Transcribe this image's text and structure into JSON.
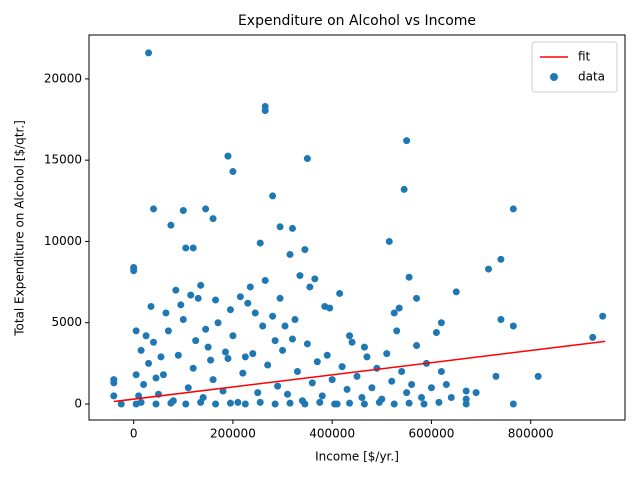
{
  "chart_data": {
    "type": "scatter",
    "title": "Expenditure on Alcohol vs Income",
    "x_label": "Income [$/yr.]",
    "y_label": "Total Expenditure on Alcohol [$/qtr.]",
    "xlim": [
      -90000,
      990000
    ],
    "ylim": [
      -985,
      22700
    ],
    "xticks": [
      0,
      200000,
      400000,
      600000,
      800000
    ],
    "yticks": [
      0,
      5000,
      10000,
      15000,
      20000
    ],
    "legend": "upper right",
    "series": [
      {
        "name": "fit",
        "type": "line",
        "color": "#ff0000",
        "x": [
          -40000,
          950000
        ],
        "values": [
          150,
          3850
        ]
      },
      {
        "name": "data",
        "type": "scatter",
        "color": "#1f77b4",
        "x": [
          30000,
          265000,
          265000,
          190000,
          350000,
          550000,
          200000,
          545000,
          280000,
          40000,
          100000,
          145000,
          765000,
          160000,
          295000,
          320000,
          75000,
          255000,
          515000,
          345000,
          105000,
          120000,
          0,
          0,
          715000,
          740000,
          555000,
          570000,
          650000,
          620000,
          740000,
          765000,
          945000,
          925000,
          815000,
          730000,
          690000,
          670000,
          670000,
          670000,
          765000,
          -40000,
          -40000,
          -40000,
          -25000,
          10000,
          20000,
          30000,
          40000,
          50000,
          60000,
          70000,
          80000,
          90000,
          100000,
          110000,
          120000,
          130000,
          140000,
          150000,
          160000,
          170000,
          180000,
          190000,
          200000,
          210000,
          220000,
          230000,
          240000,
          250000,
          260000,
          270000,
          280000,
          290000,
          300000,
          310000,
          320000,
          330000,
          340000,
          350000,
          360000,
          370000,
          380000,
          390000,
          400000,
          410000,
          420000,
          430000,
          440000,
          450000,
          460000,
          470000,
          480000,
          490000,
          500000,
          510000,
          520000,
          530000,
          540000,
          550000,
          560000,
          570000,
          580000,
          590000,
          600000,
          610000,
          620000,
          630000,
          640000,
          15000,
          25000,
          35000,
          45000,
          55000,
          65000,
          85000,
          95000,
          115000,
          125000,
          135000,
          145000,
          155000,
          165000,
          185000,
          195000,
          215000,
          225000,
          235000,
          245000,
          265000,
          285000,
          295000,
          305000,
          315000,
          325000,
          335000,
          355000,
          365000,
          385000,
          395000,
          415000,
          435000,
          465000,
          525000,
          535000,
          5000,
          5000,
          5000,
          15000,
          45000,
          75000,
          105000,
          135000,
          165000,
          195000,
          225000,
          255000,
          285000,
          315000,
          345000,
          375000,
          405000,
          435000,
          465000,
          495000,
          525000,
          555000,
          585000,
          615000
        ],
        "values": [
          21600,
          18300,
          18050,
          15250,
          15100,
          16200,
          14300,
          13200,
          12800,
          12000,
          11900,
          12000,
          12000,
          11400,
          10900,
          10800,
          11000,
          9900,
          10000,
          9500,
          9600,
          9600,
          8200,
          8400,
          8300,
          8900,
          7800,
          6500,
          6900,
          5000,
          5200,
          4800,
          5400,
          4100,
          1700,
          1700,
          700,
          800,
          300,
          0,
          0,
          1500,
          1300,
          500,
          0,
          500,
          1200,
          2500,
          3800,
          600,
          1800,
          4500,
          200,
          3000,
          5200,
          1000,
          2200,
          6500,
          400,
          3500,
          1500,
          5000,
          800,
          2800,
          4200,
          100,
          1900,
          6200,
          3100,
          700,
          4800,
          2400,
          5400,
          1100,
          3300,
          600,
          4000,
          2000,
          200,
          3700,
          1300,
          2600,
          500,
          3000,
          1500,
          0,
          2300,
          900,
          3800,
          1700,
          400,
          2900,
          1000,
          2200,
          300,
          3100,
          1400,
          4500,
          2000,
          700,
          1200,
          3600,
          400,
          2500,
          1000,
          4400,
          2000,
          1200,
          400,
          3300,
          4200,
          6000,
          1600,
          2900,
          5600,
          7000,
          6100,
          6700,
          3900,
          7300,
          4600,
          2700,
          6400,
          3200,
          5800,
          6600,
          2900,
          7200,
          5600,
          7600,
          3900,
          6500,
          4800,
          9200,
          5200,
          7900,
          7200,
          7700,
          6000,
          5900,
          6800,
          4200,
          3500,
          5600,
          5900,
          1800,
          4500,
          0,
          100,
          0,
          50,
          0,
          100,
          0,
          50,
          0,
          100,
          0,
          50,
          0,
          100,
          0,
          50,
          0,
          100,
          0,
          50,
          0,
          100
        ]
      }
    ]
  }
}
